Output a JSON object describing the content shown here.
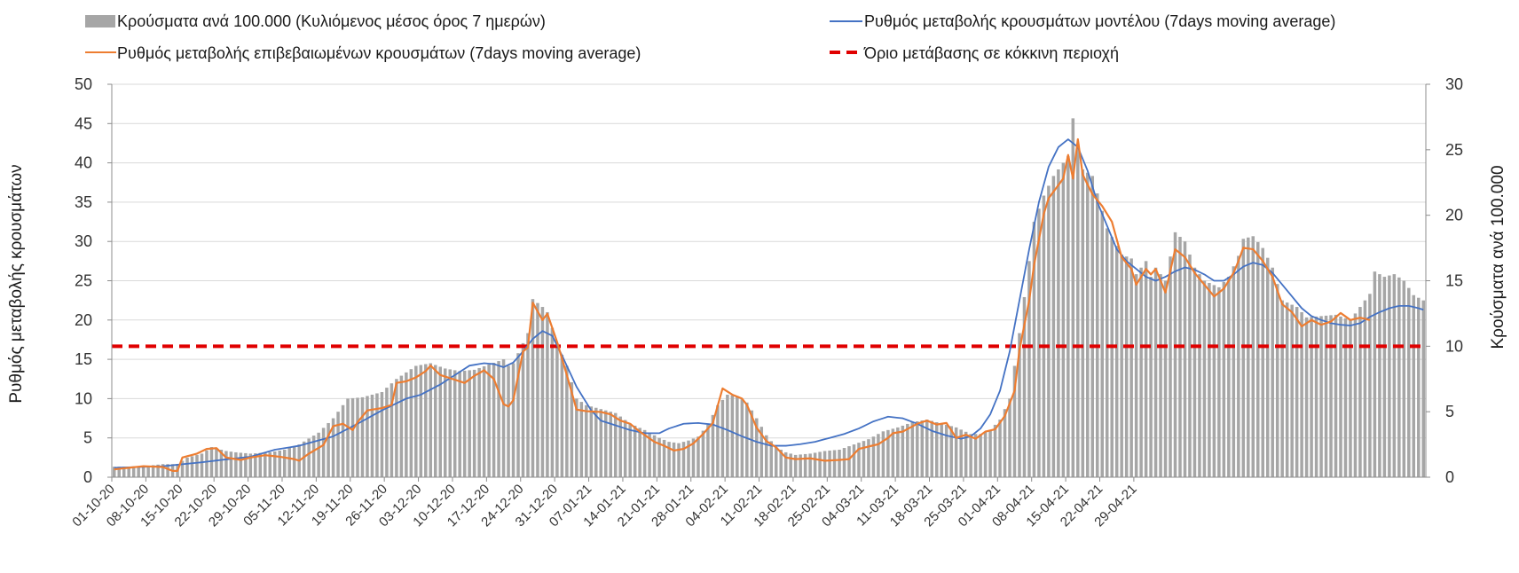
{
  "chart_data": {
    "type": "bar-line-combo",
    "legend": {
      "bars": "Κρούσματα ανά 100.000 (Κυλιόμενος μέσος όρος 7 ημερών)",
      "model": "Ρυθμός μεταβολής κρουσμάτων μοντέλου (7days moving average)",
      "confirmed": "Ρυθμός μεταβολής επιβεβαιωμένων κρουσμάτων (7days moving average)",
      "threshold": "Όριο μετάβασης σε κόκκινη περιοχή"
    },
    "ylabel_left": "Ρυθμός μεταβολής κρουσμάτων",
    "ylabel_right": "Κρούσματα ανά 100.000",
    "ylim_left": [
      0,
      50
    ],
    "ylim_right": [
      0,
      30
    ],
    "yticks_left": [
      0,
      5,
      10,
      15,
      20,
      25,
      30,
      35,
      40,
      45,
      50
    ],
    "yticks_right": [
      0,
      5,
      10,
      15,
      20,
      25,
      30
    ],
    "grid": true,
    "legend_position": "top",
    "colors": {
      "bars": "#a6a6a6",
      "model": "#4472c4",
      "confirmed": "#ed7d31",
      "threshold": "#e00000"
    },
    "x_tick_labels": [
      "01-10-20",
      "08-10-20",
      "15-10-20",
      "22-10-20",
      "29-10-20",
      "05-11-20",
      "12-11-20",
      "19-11-20",
      "26-11-20",
      "03-12-20",
      "10-12-20",
      "17-12-20",
      "24-12-20",
      "31-12-20",
      "07-01-21",
      "14-01-21",
      "21-01-21",
      "28-01-21",
      "04-02-21",
      "11-02-21",
      "18-02-21",
      "25-02-21",
      "04-03-21",
      "11-03-21",
      "18-03-21",
      "25-03-21",
      "01-04-21",
      "08-04-21",
      "15-04-21",
      "22-04-21",
      "29-04-21"
    ],
    "threshold_value_left": 16.6,
    "threshold_value_right": 10,
    "series_bars": {
      "name": "Κρούσματα ανά 100.000 (Κυλιόμενος μέσος όρος 7 ημερών)",
      "axis": "right",
      "keypoints": [
        [
          0,
          0.8
        ],
        [
          5,
          0.8
        ],
        [
          10,
          1.0
        ],
        [
          13,
          1.0
        ],
        [
          15,
          1.5
        ],
        [
          18,
          1.8
        ],
        [
          20,
          2.3
        ],
        [
          23,
          2.0
        ],
        [
          25,
          1.9
        ],
        [
          28,
          1.8
        ],
        [
          32,
          1.9
        ],
        [
          35,
          2.1
        ],
        [
          38,
          2.5
        ],
        [
          42,
          3.4
        ],
        [
          45,
          4.5
        ],
        [
          48,
          6.0
        ],
        [
          51,
          6.1
        ],
        [
          55,
          6.5
        ],
        [
          58,
          7.5
        ],
        [
          62,
          8.5
        ],
        [
          65,
          8.7
        ],
        [
          68,
          8.3
        ],
        [
          71,
          8.1
        ],
        [
          74,
          8.2
        ],
        [
          77,
          8.6
        ],
        [
          80,
          9.0
        ],
        [
          81,
          8.5
        ],
        [
          82,
          8.7
        ],
        [
          85,
          11.0
        ],
        [
          86,
          13.6
        ],
        [
          88,
          13.0
        ],
        [
          89,
          12.6
        ],
        [
          91,
          10.2
        ],
        [
          93,
          8.5
        ],
        [
          95,
          6.0
        ],
        [
          97,
          5.5
        ],
        [
          100,
          5.2
        ],
        [
          103,
          4.9
        ],
        [
          106,
          4.1
        ],
        [
          109,
          3.6
        ],
        [
          112,
          3.0
        ],
        [
          114,
          2.7
        ],
        [
          116,
          2.6
        ],
        [
          118,
          2.8
        ],
        [
          120,
          3.1
        ],
        [
          122,
          4.0
        ],
        [
          124,
          5.5
        ],
        [
          126,
          6.3
        ],
        [
          128,
          6.2
        ],
        [
          130,
          5.7
        ],
        [
          132,
          4.5
        ],
        [
          134,
          3.2
        ],
        [
          136,
          2.3
        ],
        [
          138,
          1.9
        ],
        [
          140,
          1.7
        ],
        [
          143,
          1.8
        ],
        [
          146,
          2.0
        ],
        [
          149,
          2.1
        ],
        [
          152,
          2.5
        ],
        [
          155,
          2.9
        ],
        [
          158,
          3.5
        ],
        [
          161,
          3.8
        ],
        [
          164,
          4.2
        ],
        [
          167,
          4.4
        ],
        [
          170,
          4.1
        ],
        [
          173,
          3.8
        ],
        [
          176,
          3.3
        ],
        [
          178,
          3.3
        ],
        [
          180,
          3.6
        ],
        [
          182,
          4.4
        ],
        [
          184,
          6.0
        ],
        [
          186,
          11.0
        ],
        [
          188,
          16.5
        ],
        [
          189,
          19.5
        ],
        [
          191,
          21.5
        ],
        [
          193,
          23.0
        ],
        [
          196,
          24.5
        ],
        [
          197,
          27.4
        ],
        [
          199,
          23.5
        ],
        [
          201,
          23.0
        ],
        [
          204,
          19.0
        ],
        [
          207,
          17.0
        ],
        [
          209,
          16.7
        ],
        [
          210,
          15.5
        ],
        [
          212,
          16.5
        ],
        [
          213,
          15.3
        ],
        [
          214,
          16.0
        ],
        [
          216,
          15.0
        ],
        [
          218,
          18.7
        ],
        [
          220,
          18.0
        ],
        [
          222,
          16.0
        ],
        [
          224,
          15.0
        ],
        [
          227,
          14.5
        ],
        [
          229,
          15.3
        ],
        [
          231,
          16.9
        ],
        [
          232,
          18.2
        ],
        [
          234,
          18.4
        ],
        [
          236,
          17.5
        ],
        [
          238,
          16.0
        ],
        [
          240,
          13.5
        ],
        [
          243,
          13.0
        ],
        [
          245,
          12.2
        ],
        [
          248,
          12.3
        ],
        [
          251,
          12.4
        ],
        [
          254,
          12.0
        ],
        [
          256,
          13.0
        ],
        [
          258,
          14.0
        ],
        [
          259,
          15.7
        ],
        [
          261,
          15.3
        ],
        [
          263,
          15.5
        ],
        [
          265,
          15.0
        ],
        [
          267,
          13.9
        ],
        [
          269,
          13.5
        ]
      ]
    },
    "series_confirmed": {
      "name": "Ρυθμός μεταβολής επιβεβαιωμένων κρουσμάτων (7days moving average)",
      "axis": "left",
      "keypoints": [
        [
          0,
          1.0
        ],
        [
          3,
          1.2
        ],
        [
          6,
          1.4
        ],
        [
          10,
          1.3
        ],
        [
          12,
          0.8
        ],
        [
          13,
          0.8
        ],
        [
          14,
          2.5
        ],
        [
          17,
          3.0
        ],
        [
          19,
          3.6
        ],
        [
          21,
          3.7
        ],
        [
          23,
          2.5
        ],
        [
          26,
          2.2
        ],
        [
          28,
          2.5
        ],
        [
          31,
          2.8
        ],
        [
          34,
          2.6
        ],
        [
          37,
          2.3
        ],
        [
          38,
          2.1
        ],
        [
          40,
          3.0
        ],
        [
          43,
          4.1
        ],
        [
          45,
          6.5
        ],
        [
          47,
          6.8
        ],
        [
          49,
          6.0
        ],
        [
          50,
          7.0
        ],
        [
          52,
          8.5
        ],
        [
          55,
          8.8
        ],
        [
          57,
          9.2
        ],
        [
          58,
          12.0
        ],
        [
          60,
          12.2
        ],
        [
          62,
          12.7
        ],
        [
          64,
          13.5
        ],
        [
          65,
          14.2
        ],
        [
          67,
          13.0
        ],
        [
          70,
          12.4
        ],
        [
          72,
          12.0
        ],
        [
          74,
          12.9
        ],
        [
          76,
          13.6
        ],
        [
          78,
          12.5
        ],
        [
          80,
          9.3
        ],
        [
          81,
          9.0
        ],
        [
          82,
          9.8
        ],
        [
          84,
          16.0
        ],
        [
          85,
          16.5
        ],
        [
          86,
          22.2
        ],
        [
          88,
          20.0
        ],
        [
          89,
          20.8
        ],
        [
          91,
          17.2
        ],
        [
          93,
          13.0
        ],
        [
          95,
          8.6
        ],
        [
          97,
          8.4
        ],
        [
          100,
          8.3
        ],
        [
          102,
          8.0
        ],
        [
          104,
          7.2
        ],
        [
          106,
          6.8
        ],
        [
          108,
          5.8
        ],
        [
          111,
          4.5
        ],
        [
          113,
          4.0
        ],
        [
          115,
          3.4
        ],
        [
          117,
          3.6
        ],
        [
          119,
          4.3
        ],
        [
          121,
          5.5
        ],
        [
          123,
          6.9
        ],
        [
          125,
          11.3
        ],
        [
          127,
          10.5
        ],
        [
          129,
          10.0
        ],
        [
          130,
          9.2
        ],
        [
          132,
          6.3
        ],
        [
          134,
          4.6
        ],
        [
          136,
          3.8
        ],
        [
          138,
          2.5
        ],
        [
          140,
          2.3
        ],
        [
          143,
          2.4
        ],
        [
          146,
          2.1
        ],
        [
          149,
          2.2
        ],
        [
          151,
          2.3
        ],
        [
          153,
          3.6
        ],
        [
          155,
          3.9
        ],
        [
          157,
          4.2
        ],
        [
          159,
          5.0
        ],
        [
          160,
          5.6
        ],
        [
          162,
          5.8
        ],
        [
          165,
          6.8
        ],
        [
          167,
          7.2
        ],
        [
          169,
          6.7
        ],
        [
          171,
          6.9
        ],
        [
          173,
          5.0
        ],
        [
          175,
          5.4
        ],
        [
          177,
          4.9
        ],
        [
          179,
          5.8
        ],
        [
          181,
          6.1
        ],
        [
          183,
          7.8
        ],
        [
          185,
          11.0
        ],
        [
          186,
          16.2
        ],
        [
          188,
          22.5
        ],
        [
          189,
          27.0
        ],
        [
          191,
          33.5
        ],
        [
          192,
          35.5
        ],
        [
          195,
          38.0
        ],
        [
          196,
          41.0
        ],
        [
          197,
          38.0
        ],
        [
          198,
          43.0
        ],
        [
          199,
          38.5
        ],
        [
          201,
          36.0
        ],
        [
          203,
          34.5
        ],
        [
          205,
          32.5
        ],
        [
          207,
          28.0
        ],
        [
          209,
          26.5
        ],
        [
          210,
          24.5
        ],
        [
          212,
          26.5
        ],
        [
          213,
          25.8
        ],
        [
          214,
          26.5
        ],
        [
          216,
          23.5
        ],
        [
          218,
          29.0
        ],
        [
          220,
          28.0
        ],
        [
          222,
          26.0
        ],
        [
          224,
          24.5
        ],
        [
          226,
          23.0
        ],
        [
          228,
          24.0
        ],
        [
          230,
          26.0
        ],
        [
          231,
          27.5
        ],
        [
          232,
          29.2
        ],
        [
          234,
          29.0
        ],
        [
          236,
          27.5
        ],
        [
          238,
          25.5
        ],
        [
          240,
          22.0
        ],
        [
          242,
          21.0
        ],
        [
          244,
          19.2
        ],
        [
          246,
          20.0
        ],
        [
          248,
          19.4
        ],
        [
          250,
          19.8
        ],
        [
          252,
          20.9
        ],
        [
          254,
          20.0
        ],
        [
          256,
          20.3
        ],
        [
          258,
          20.0
        ]
      ]
    },
    "series_model": {
      "name": "Ρυθμός μεταβολής κρουσμάτων μοντέλου (7days moving average)",
      "axis": "left",
      "keypoints": [
        [
          0,
          1.2
        ],
        [
          10,
          1.4
        ],
        [
          18,
          1.9
        ],
        [
          22,
          2.2
        ],
        [
          28,
          2.6
        ],
        [
          33,
          3.5
        ],
        [
          38,
          4.0
        ],
        [
          45,
          5.2
        ],
        [
          50,
          6.8
        ],
        [
          55,
          8.5
        ],
        [
          60,
          10.0
        ],
        [
          63,
          10.5
        ],
        [
          67,
          11.8
        ],
        [
          70,
          13.0
        ],
        [
          73,
          14.2
        ],
        [
          76,
          14.5
        ],
        [
          78,
          14.4
        ],
        [
          80,
          14.0
        ],
        [
          82,
          14.6
        ],
        [
          84,
          16.0
        ],
        [
          86,
          17.6
        ],
        [
          88,
          18.6
        ],
        [
          90,
          18.0
        ],
        [
          92,
          15.5
        ],
        [
          95,
          11.5
        ],
        [
          98,
          8.5
        ],
        [
          100,
          7.2
        ],
        [
          103,
          6.6
        ],
        [
          106,
          6.0
        ],
        [
          109,
          5.6
        ],
        [
          112,
          5.6
        ],
        [
          114,
          6.2
        ],
        [
          117,
          6.8
        ],
        [
          120,
          6.9
        ],
        [
          123,
          6.7
        ],
        [
          126,
          6.0
        ],
        [
          129,
          5.2
        ],
        [
          132,
          4.5
        ],
        [
          135,
          4.0
        ],
        [
          138,
          4.0
        ],
        [
          141,
          4.2
        ],
        [
          144,
          4.5
        ],
        [
          147,
          5.0
        ],
        [
          150,
          5.5
        ],
        [
          153,
          6.2
        ],
        [
          156,
          7.1
        ],
        [
          159,
          7.7
        ],
        [
          162,
          7.5
        ],
        [
          165,
          6.8
        ],
        [
          168,
          5.9
        ],
        [
          171,
          5.3
        ],
        [
          174,
          4.9
        ],
        [
          176,
          5.2
        ],
        [
          178,
          6.2
        ],
        [
          180,
          8.0
        ],
        [
          182,
          11.0
        ],
        [
          184,
          16.0
        ],
        [
          186,
          22.5
        ],
        [
          188,
          29.0
        ],
        [
          190,
          35.0
        ],
        [
          192,
          39.5
        ],
        [
          194,
          42.0
        ],
        [
          196,
          43.0
        ],
        [
          198,
          42.0
        ],
        [
          200,
          39.0
        ],
        [
          202,
          35.0
        ],
        [
          204,
          32.0
        ],
        [
          206,
          29.0
        ],
        [
          208,
          27.5
        ],
        [
          210,
          26.5
        ],
        [
          212,
          25.5
        ],
        [
          214,
          25.0
        ],
        [
          216,
          25.5
        ],
        [
          218,
          26.2
        ],
        [
          220,
          26.7
        ],
        [
          222,
          26.4
        ],
        [
          224,
          25.8
        ],
        [
          226,
          25.0
        ],
        [
          228,
          25.0
        ],
        [
          230,
          25.8
        ],
        [
          232,
          26.8
        ],
        [
          234,
          27.3
        ],
        [
          236,
          27.0
        ],
        [
          238,
          26.0
        ],
        [
          240,
          24.5
        ],
        [
          242,
          23.0
        ],
        [
          244,
          21.5
        ],
        [
          246,
          20.5
        ],
        [
          248,
          20.0
        ],
        [
          250,
          19.6
        ],
        [
          252,
          19.4
        ],
        [
          254,
          19.3
        ],
        [
          256,
          19.6
        ],
        [
          258,
          20.4
        ],
        [
          260,
          21.0
        ],
        [
          262,
          21.5
        ],
        [
          264,
          21.8
        ],
        [
          266,
          21.8
        ],
        [
          268,
          21.5
        ],
        [
          269,
          21.3
        ]
      ]
    }
  }
}
